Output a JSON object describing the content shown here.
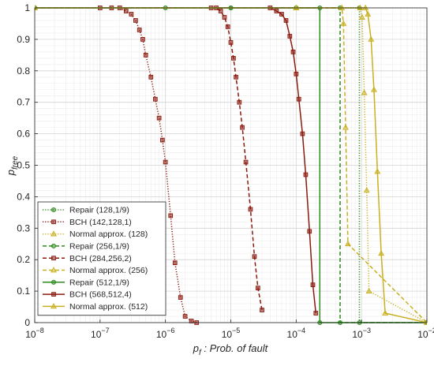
{
  "chart_data": {
    "type": "line",
    "title": "",
    "xlabel": "Prob. of fault",
    "xlabel_symbol": "p",
    "xlabel_symbol_sub": "f",
    "xlabel_separator": " : ",
    "ylabel_symbol": "p",
    "ylabel_symbol_sub": "free",
    "x_scale": "log",
    "xlim": [
      1e-08,
      0.01
    ],
    "ylim": [
      0,
      1
    ],
    "x_ticks": [
      {
        "value": 1e-08,
        "base": "10",
        "exp": "−8"
      },
      {
        "value": 1e-07,
        "base": "10",
        "exp": "−7"
      },
      {
        "value": 1e-06,
        "base": "10",
        "exp": "−6"
      },
      {
        "value": 1e-05,
        "base": "10",
        "exp": "−5"
      },
      {
        "value": 0.0001,
        "base": "10",
        "exp": "−4"
      },
      {
        "value": 0.001,
        "base": "10",
        "exp": "−3"
      },
      {
        "value": 0.01,
        "base": "10",
        "exp": "−2"
      }
    ],
    "y_ticks": [
      {
        "value": 0,
        "label": "0"
      },
      {
        "value": 0.1,
        "label": "0.1"
      },
      {
        "value": 0.2,
        "label": "0.2"
      },
      {
        "value": 0.3,
        "label": "0.3"
      },
      {
        "value": 0.4,
        "label": "0.4"
      },
      {
        "value": 0.5,
        "label": "0.5"
      },
      {
        "value": 0.6,
        "label": "0.6"
      },
      {
        "value": 0.7,
        "label": "0.7"
      },
      {
        "value": 0.8,
        "label": "0.8"
      },
      {
        "value": 0.9,
        "label": "0.9"
      },
      {
        "value": 1,
        "label": "1"
      }
    ],
    "grid": true,
    "minor_grid": true,
    "legend_position": "bottom-left",
    "series": [
      {
        "name": "Repair (128,1/9)",
        "color": "#2e8b1e",
        "dash": "dotted",
        "marker": "circle",
        "x": [
          1e-08,
          1e-06,
          0.0001,
          0.00093,
          0.00093,
          0.01
        ],
        "y": [
          1,
          1,
          1,
          1,
          0,
          0
        ]
      },
      {
        "name": "BCH (142,128,1)",
        "color": "#8b1a0e",
        "dash": "dotted",
        "marker": "square",
        "x": [
          1e-07,
          1.5e-07,
          2e-07,
          2.5e-07,
          3e-07,
          3.5e-07,
          4e-07,
          4.5e-07,
          5e-07,
          6e-07,
          7e-07,
          8e-07,
          9e-07,
          1e-06,
          1.2e-06,
          1.4e-06,
          1.7e-06,
          2e-06,
          2.5e-06,
          3e-06
        ],
        "y": [
          1,
          1,
          1,
          0.99,
          0.98,
          0.96,
          0.93,
          0.9,
          0.85,
          0.78,
          0.71,
          0.65,
          0.58,
          0.51,
          0.34,
          0.19,
          0.08,
          0.02,
          0.005,
          0
        ]
      },
      {
        "name": "Normal approx. (128)",
        "color": "#c9b021",
        "dash": "dotted",
        "marker": "triangle",
        "x": [
          1e-08,
          0.0001,
          0.00095,
          0.00102,
          0.0011,
          0.0012,
          0.0013,
          0.01
        ],
        "y": [
          1,
          1,
          1,
          0.97,
          0.73,
          0.42,
          0.1,
          0
        ]
      },
      {
        "name": "Repair (256,1/9)",
        "color": "#2e8b1e",
        "dash": "dashed",
        "marker": "circle",
        "x": [
          1e-08,
          1e-05,
          0.0001,
          0.00047,
          0.00047,
          0.01
        ],
        "y": [
          1,
          1,
          1,
          1,
          0,
          0
        ]
      },
      {
        "name": "BCH (284,256,2)",
        "color": "#8b1a0e",
        "dash": "dashed",
        "marker": "square",
        "x": [
          5e-06,
          6e-06,
          7e-06,
          8e-06,
          9e-06,
          1e-05,
          1.1e-05,
          1.2e-05,
          1.35e-05,
          1.5e-05,
          1.7e-05,
          2e-05,
          2.3e-05,
          2.6e-05,
          3e-05
        ],
        "y": [
          1,
          1,
          0.99,
          0.97,
          0.94,
          0.89,
          0.84,
          0.78,
          0.7,
          0.62,
          0.51,
          0.36,
          0.21,
          0.11,
          0.04
        ]
      },
      {
        "name": "Normal approx. (256)",
        "color": "#c9b021",
        "dash": "dashed",
        "marker": "triangle",
        "x": [
          1e-08,
          0.0001,
          0.0005,
          0.00053,
          0.00057,
          0.00062,
          0.01
        ],
        "y": [
          1,
          1,
          1,
          0.95,
          0.62,
          0.25,
          0
        ]
      },
      {
        "name": "Repair (512,1/9)",
        "color": "#2e8b1e",
        "dash": "solid",
        "marker": "circle",
        "x": [
          1e-08,
          1e-05,
          0.00023,
          0.00023,
          0.01
        ],
        "y": [
          1,
          1,
          1,
          0,
          0
        ]
      },
      {
        "name": "BCH (568,512,4)",
        "color": "#8b1a0e",
        "dash": "solid",
        "marker": "square",
        "x": [
          4e-05,
          5e-05,
          6e-05,
          7e-05,
          8e-05,
          9e-05,
          0.0001,
          0.00011,
          0.000125,
          0.00014,
          0.00016,
          0.00018,
          0.0002
        ],
        "y": [
          1,
          0.99,
          0.98,
          0.96,
          0.91,
          0.86,
          0.79,
          0.71,
          0.6,
          0.47,
          0.29,
          0.12,
          0.03
        ]
      },
      {
        "name": "Normal approx. (512)",
        "color": "#c9b021",
        "dash": "solid",
        "marker": "triangle",
        "x": [
          1e-08,
          0.0001,
          0.00115,
          0.00125,
          0.0014,
          0.00155,
          0.00175,
          0.002,
          0.0023,
          0.01
        ],
        "y": [
          1,
          1,
          1,
          0.98,
          0.9,
          0.74,
          0.48,
          0.22,
          0.03,
          0
        ]
      }
    ]
  }
}
